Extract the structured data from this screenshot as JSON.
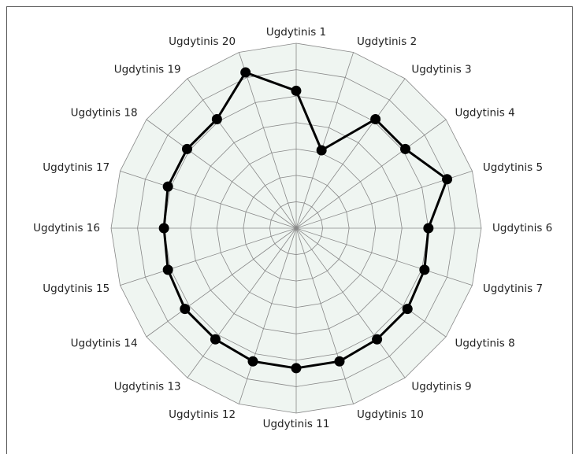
{
  "chart_data": {
    "type": "radar",
    "categories": [
      "Ugdytinis 1",
      "Ugdytinis 2",
      "Ugdytinis 3",
      "Ugdytinis 4",
      "Ugdytinis 5",
      "Ugdytinis 6",
      "Ugdytinis 7",
      "Ugdytinis 8",
      "Ugdytinis 9",
      "Ugdytinis 10",
      "Ugdytinis 11",
      "Ugdytinis 12",
      "Ugdytinis 13",
      "Ugdytinis 14",
      "Ugdytinis 15",
      "Ugdytinis 16",
      "Ugdytinis 17",
      "Ugdytinis 18",
      "Ugdytinis 19",
      "Ugdytinis 20"
    ],
    "values": [
      5.2,
      3.1,
      5.1,
      5.1,
      6,
      5,
      5.1,
      5.2,
      5.2,
      5.3,
      5.3,
      5.3,
      5.2,
      5.2,
      5.1,
      5,
      5.1,
      5.1,
      5.1,
      6.2
    ],
    "color": "#000000",
    "ylim": [
      0,
      7
    ],
    "yticks": [
      1,
      2,
      3,
      4,
      5,
      6,
      7
    ],
    "grid": true
  }
}
